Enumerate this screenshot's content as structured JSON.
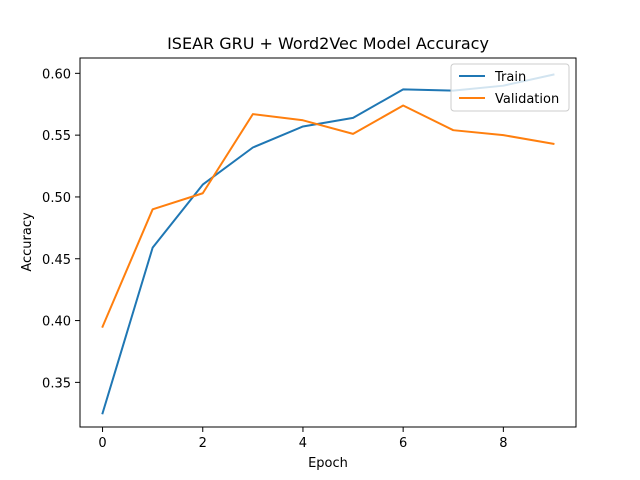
{
  "chart_data": {
    "type": "line",
    "title": "ISEAR GRU + Word2Vec Model Accuracy",
    "xlabel": "Epoch",
    "ylabel": "Accuracy",
    "x": [
      0,
      1,
      2,
      3,
      4,
      5,
      6,
      7,
      8,
      9
    ],
    "xlim": [
      -0.45,
      9.45
    ],
    "ylim": [
      0.3139,
      0.6124
    ],
    "xticks": [
      0,
      2,
      4,
      6,
      8
    ],
    "xtick_labels": [
      "0",
      "2",
      "4",
      "6",
      "8"
    ],
    "yticks": [
      0.35,
      0.4,
      0.45,
      0.5,
      0.55,
      0.6
    ],
    "ytick_labels": [
      "0.35",
      "0.40",
      "0.45",
      "0.50",
      "0.55",
      "0.60"
    ],
    "grid": false,
    "legend_position": "top-right",
    "series": [
      {
        "name": "Train",
        "color": "#1f77b4",
        "values": [
          0.325,
          0.459,
          0.51,
          0.54,
          0.557,
          0.564,
          0.587,
          0.586,
          0.59,
          0.599
        ]
      },
      {
        "name": "Validation",
        "color": "#ff7f0e",
        "values": [
          0.395,
          0.49,
          0.503,
          0.567,
          0.562,
          0.551,
          0.574,
          0.554,
          0.55,
          0.543
        ]
      }
    ]
  }
}
